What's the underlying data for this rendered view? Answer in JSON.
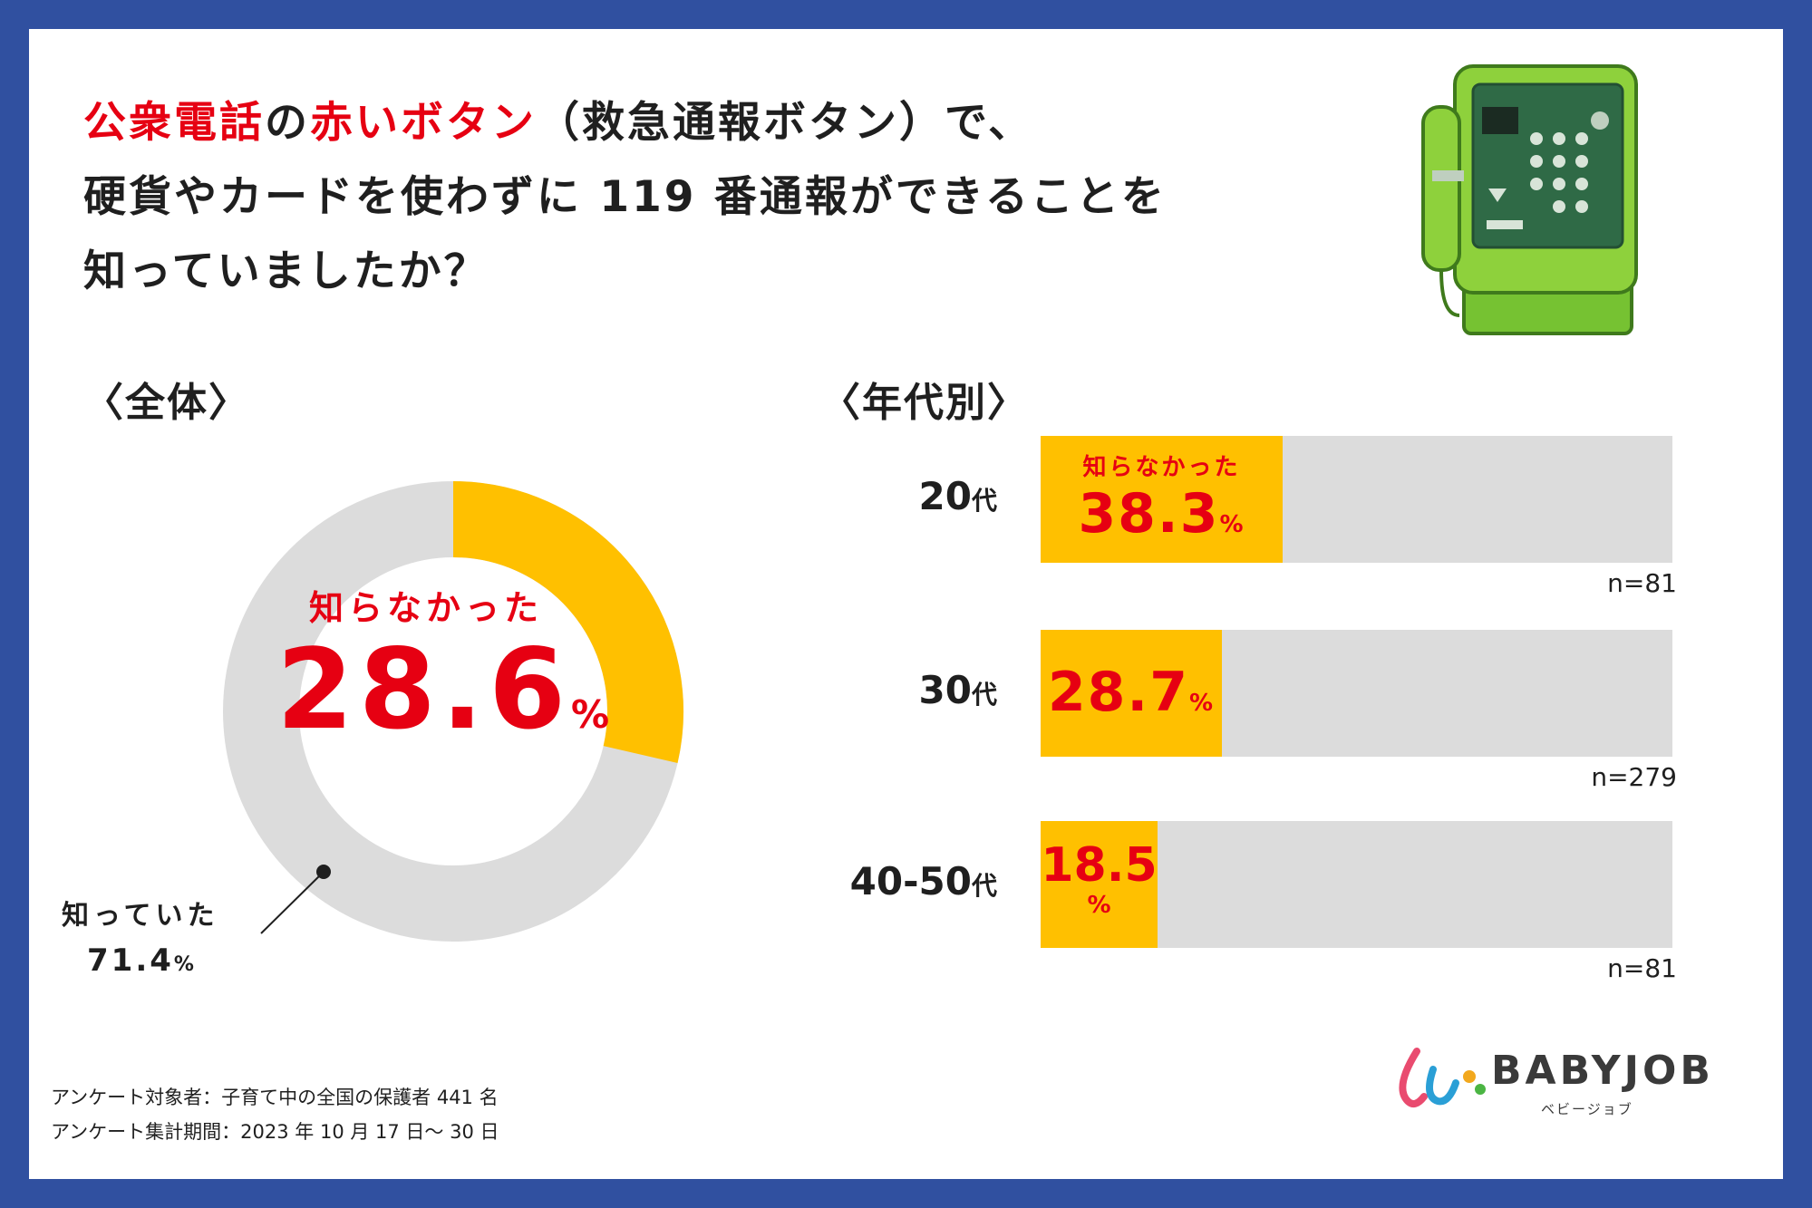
{
  "title": {
    "line1_red1": "公衆電話",
    "line1_mid": "の",
    "line1_red2": "赤いボタン",
    "line1_rest": "（救急通報ボタン）で、",
    "line2": "硬貨やカードを使わずに 119 番通報ができることを",
    "line3": "知っていましたか？"
  },
  "sections": {
    "overall": "〈全体〉",
    "by_age": "〈年代別〉"
  },
  "donut": {
    "unknown_label": "知らなかった",
    "unknown_value": "28.6",
    "unknown_pct": "%",
    "known_label": "知っていた",
    "known_value": "71.4",
    "known_pct": "%"
  },
  "bars": [
    {
      "age": "20",
      "dai": "代",
      "label": "知らなかった",
      "value": "38.3",
      "pct": "%",
      "n": "n=81"
    },
    {
      "age": "30",
      "dai": "代",
      "label": "",
      "value": "28.7",
      "pct": "%",
      "n": "n=279"
    },
    {
      "age": "40-50",
      "dai": "代",
      "label": "",
      "value": "18.5",
      "pct": "%",
      "n": "n=81"
    }
  ],
  "footer": {
    "line1": "アンケート対象者：子育て中の全国の保護者 441 名",
    "line2": "アンケート集計期間：2023 年 10 月 17 日〜 30 日"
  },
  "logo": {
    "text": "BABYJOB",
    "sub": "ベビージョブ"
  },
  "colors": {
    "accent": "#e60012",
    "fill": "#ffc000",
    "track": "#dcdcdc",
    "frame": "#3050a0"
  },
  "chart_data": [
    {
      "type": "pie",
      "title": "〈全体〉",
      "categories": [
        "知らなかった",
        "知っていた"
      ],
      "values": [
        28.6,
        71.4
      ],
      "unit": "%"
    },
    {
      "type": "bar",
      "orientation": "horizontal",
      "title": "〈年代別〉",
      "categories": [
        "20代",
        "30代",
        "40-50代"
      ],
      "series": [
        {
          "name": "知らなかった",
          "values": [
            38.3,
            28.7,
            18.5
          ]
        }
      ],
      "n": [
        81,
        279,
        81
      ],
      "xlim": [
        0,
        100
      ],
      "unit": "%"
    }
  ]
}
